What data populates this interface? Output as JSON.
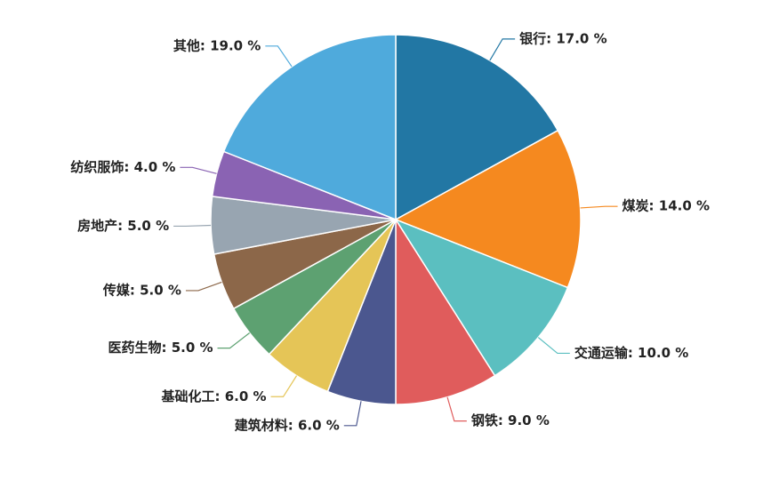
{
  "chart_data": {
    "type": "pie",
    "values": [
      17.0,
      14.0,
      10.0,
      9.0,
      6.0,
      6.0,
      5.0,
      5.0,
      5.0,
      4.0,
      19.0
    ],
    "value_labels": [
      "银行: 17.0 %",
      "煤炭: 14.0 %",
      "交通运输: 10.0 %",
      "钢铁: 9.0 %",
      "建筑材料: 6.0 %",
      "基础化工: 6.0 %",
      "医药生物: 5.0 %",
      "传媒: 5.0 %",
      "房地产: 5.0 %",
      "纺织服饰: 4.0 %",
      "其他: 19.0 %"
    ],
    "colors": [
      "#2277a4",
      "#f5891f",
      "#5bbfc0",
      "#e05c5c",
      "#4b578f",
      "#e5c557",
      "#5da171",
      "#8c6749",
      "#98a5b1",
      "#8a63b3",
      "#4faadc"
    ]
  }
}
